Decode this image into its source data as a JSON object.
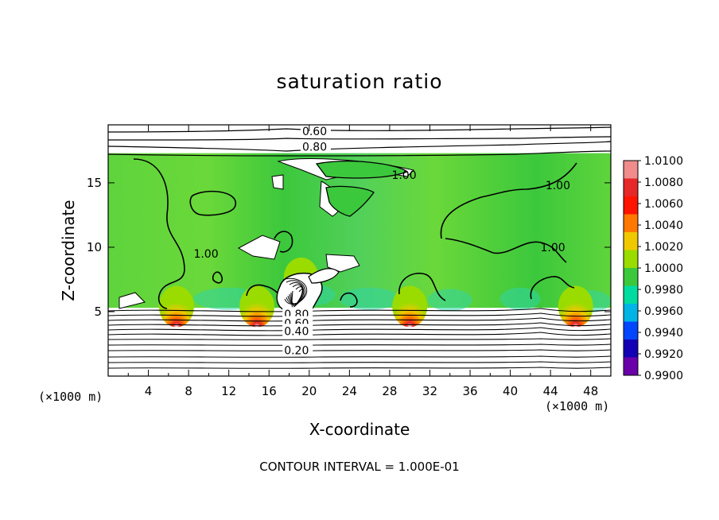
{
  "chart_data": {
    "type": "heatmap",
    "title": "saturation ratio",
    "xlabel": "X-coordinate",
    "ylabel": "Z-coordinate",
    "x_unit": "(×1000 m)",
    "z_unit": "(×1000 m)",
    "footer": "CONTOUR INTERVAL = 1.000E-01",
    "xlim": [
      0,
      50
    ],
    "ylim": [
      0,
      19.5
    ],
    "x_ticks": [
      4,
      8,
      12,
      16,
      20,
      24,
      28,
      32,
      36,
      40,
      44,
      48
    ],
    "y_ticks": [
      5,
      10,
      15
    ],
    "colorbar": {
      "min": 0.99,
      "max": 1.01,
      "tick_labels": [
        "1.0100",
        "1.0080",
        "1.0060",
        "1.0040",
        "1.0020",
        "1.0000",
        "0.9980",
        "0.9960",
        "0.9940",
        "0.9920",
        "0.9900"
      ],
      "colors": [
        "#f08c8c",
        "#e62828",
        "#ff1400",
        "#ff7800",
        "#f0c800",
        "#9adc00",
        "#3cc83c",
        "#00dca0",
        "#00b4e6",
        "#0046ff",
        "#1400b4",
        "#6a00aa"
      ]
    },
    "contour_labels": [
      {
        "text": "0.60",
        "x": 19.3,
        "z": 19.0
      },
      {
        "text": "0.80",
        "x": 19.3,
        "z": 17.8
      },
      {
        "text": "1.00",
        "x": 28.2,
        "z": 15.6
      },
      {
        "text": "1.00",
        "x": 43.5,
        "z": 14.8
      },
      {
        "text": "1.00",
        "x": 8.5,
        "z": 9.5
      },
      {
        "text": "1.00",
        "x": 43.0,
        "z": 10.0
      },
      {
        "text": "0.80",
        "x": 17.5,
        "z": 4.8
      },
      {
        "text": "0.60",
        "x": 17.5,
        "z": 4.1
      },
      {
        "text": "0.40",
        "x": 17.5,
        "z": 3.5
      },
      {
        "text": "0.20",
        "x": 17.5,
        "z": 2.0
      }
    ],
    "hotspots": [
      {
        "x": 6.8,
        "z": 5.4,
        "value": 1.006
      },
      {
        "x": 14.8,
        "z": 5.4,
        "value": 1.006
      },
      {
        "x": 30.0,
        "z": 5.4,
        "value": 1.004
      },
      {
        "x": 46.5,
        "z": 5.4,
        "value": 1.008
      },
      {
        "x": 19.2,
        "z": 7.6,
        "value": 1.004
      }
    ],
    "saturated_layer_z": [
      5.3,
      17.3
    ]
  }
}
